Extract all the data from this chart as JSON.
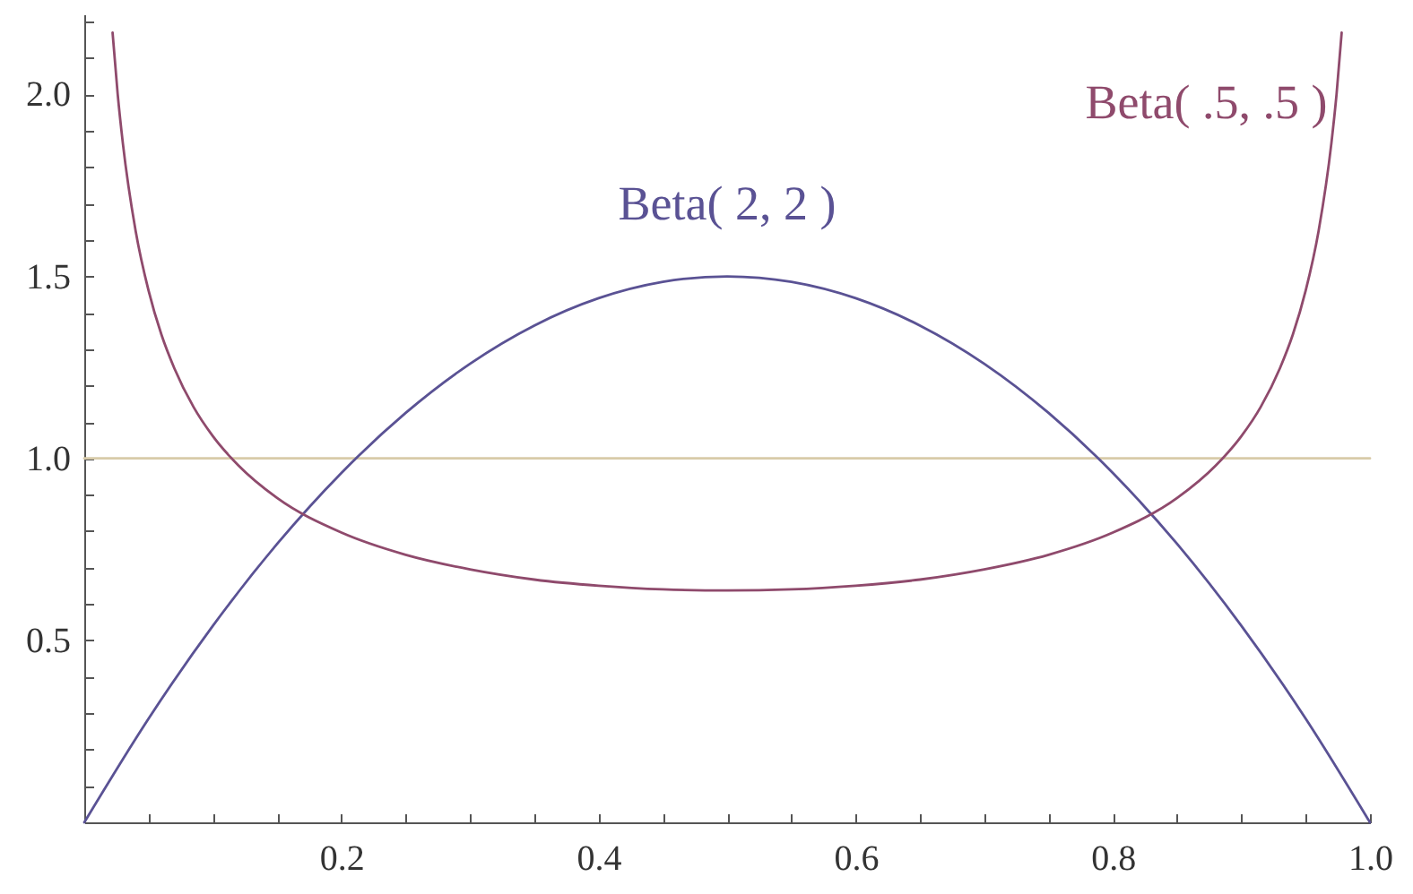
{
  "chart_data": {
    "type": "line",
    "xlim": [
      0,
      1
    ],
    "xticks": [
      {
        "value": 0.05,
        "label": null
      },
      {
        "value": 0.1,
        "label": null
      },
      {
        "value": 0.15,
        "label": null
      },
      0.2,
      {
        "value": 0.25,
        "label": null
      },
      {
        "value": 0.3,
        "label": null
      },
      {
        "value": 0.35,
        "label": null
      },
      0.4,
      {
        "value": 0.45,
        "label": null
      },
      {
        "value": 0.5,
        "label": null
      },
      {
        "value": 0.55,
        "label": null
      },
      0.6,
      {
        "value": 0.65,
        "label": null
      },
      {
        "value": 0.7,
        "label": null
      },
      {
        "value": 0.75,
        "label": null
      },
      0.8,
      {
        "value": 0.85,
        "label": null
      },
      {
        "value": 0.9,
        "label": null
      },
      {
        "value": 0.95,
        "label": null
      },
      {
        "value": 1,
        "label": "1.0"
      }
    ],
    "ylim": [
      0,
      2.22
    ],
    "yticks": [
      {
        "value": 0.1,
        "label": null
      },
      {
        "value": 0.2,
        "label": null
      },
      {
        "value": 0.3,
        "label": null
      },
      {
        "value": 0.4,
        "label": null
      },
      0.5,
      {
        "value": 0.6,
        "label": null
      },
      {
        "value": 0.7,
        "label": null
      },
      {
        "value": 0.8,
        "label": null
      },
      {
        "value": 0.9,
        "label": null
      },
      {
        "value": 1,
        "label": "1.0"
      },
      {
        "value": 1.1,
        "label": null
      },
      {
        "value": 1.2,
        "label": null
      },
      {
        "value": 1.3,
        "label": null
      },
      {
        "value": 1.4,
        "label": null
      },
      1.5,
      {
        "value": 1.6,
        "label": null
      },
      {
        "value": 1.7,
        "label": null
      },
      {
        "value": 1.8,
        "label": null
      },
      {
        "value": 1.9,
        "label": null
      },
      {
        "value": 2,
        "label": "2.0"
      },
      {
        "value": 2.1,
        "label": null
      },
      {
        "value": 2.2,
        "label": null
      }
    ],
    "series": [
      {
        "color": "#d8cba9",
        "x": [
          0,
          1
        ],
        "values": [
          1,
          1
        ]
      },
      {
        "name": "Beta( 2, 2 )",
        "color": "#5a5294",
        "x": [
          0,
          0.05,
          0.1,
          0.15,
          0.2,
          0.25,
          0.3,
          0.35,
          0.4,
          0.45,
          0.5,
          0.55,
          0.6,
          0.65,
          0.7,
          0.75,
          0.8,
          0.85,
          0.9,
          0.95,
          1
        ],
        "values": [
          0,
          0.285,
          0.54,
          0.765,
          0.96,
          1.125,
          1.26,
          1.365,
          1.44,
          1.485,
          1.5,
          1.485,
          1.44,
          1.365,
          1.26,
          1.125,
          0.96,
          0.765,
          0.54,
          0.285,
          0
        ]
      },
      {
        "name": "Beta( .5, .5 )",
        "color": "#8f4a6c",
        "x": [
          0.022,
          0.026,
          0.03,
          0.04,
          0.05,
          0.06,
          0.07,
          0.085,
          0.1,
          0.12,
          0.15,
          0.2,
          0.25,
          0.3,
          0.35,
          0.4,
          0.45,
          0.5,
          0.55,
          0.6,
          0.65,
          0.7,
          0.75,
          0.8,
          0.85,
          0.88,
          0.9,
          0.915,
          0.93,
          0.94,
          0.95,
          0.96,
          0.97,
          0.974,
          0.978
        ],
        "values": [
          2.17,
          2.0,
          1.866,
          1.624,
          1.461,
          1.34,
          1.248,
          1.141,
          1.061,
          0.98,
          0.891,
          0.796,
          0.735,
          0.695,
          0.667,
          0.65,
          0.64,
          0.637,
          0.64,
          0.65,
          0.667,
          0.695,
          0.735,
          0.796,
          0.891,
          0.98,
          1.061,
          1.141,
          1.248,
          1.34,
          1.461,
          1.624,
          1.866,
          2.0,
          2.17
        ]
      }
    ]
  }
}
